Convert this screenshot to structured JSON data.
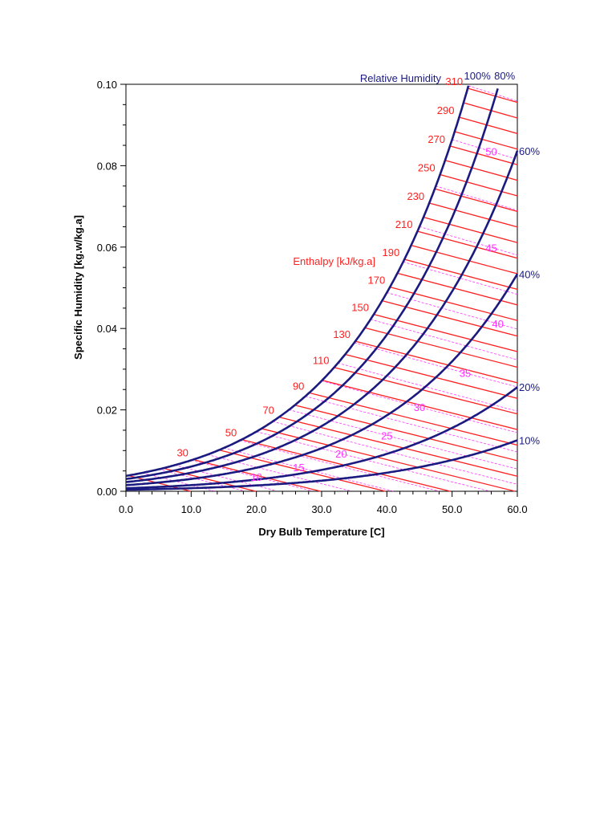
{
  "chart_data": {
    "type": "line",
    "title": "",
    "xlabel": "Dry Bulb Temperature [C]",
    "ylabel": "Specific Humidity [kg.w/kg.a]",
    "xlim": [
      0,
      60
    ],
    "ylim": [
      0,
      0.1
    ],
    "x_ticks": [
      "0.0",
      "10.0",
      "20.0",
      "30.0",
      "40.0",
      "50.0",
      "60.0"
    ],
    "y_ticks": [
      "0.00",
      "0.02",
      "0.04",
      "0.06",
      "0.08",
      "0.10"
    ],
    "grid": false,
    "relative_humidity": {
      "title": "Relative Humidity",
      "levels": [
        100,
        80,
        60,
        40,
        20,
        10
      ],
      "labels": [
        "100%",
        "80%",
        "60%",
        "40%",
        "20%",
        "10%"
      ],
      "color": "#1a1a80"
    },
    "enthalpy": {
      "title": "Enthalpy [kJ/kg.a]",
      "lines_from": 10,
      "lines_to": 310,
      "lines_step": 10,
      "labels": [
        "30",
        "50",
        "70",
        "90",
        "110",
        "130",
        "150",
        "170",
        "190",
        "210",
        "230",
        "250",
        "270",
        "290",
        "310"
      ],
      "color": "#ff2020"
    },
    "wet_bulb": {
      "labels": [
        "10",
        "15",
        "20",
        "25",
        "30",
        "35",
        "40",
        "45",
        "50"
      ],
      "color": "#ff33ff"
    },
    "pressure_kpa": 101.325
  }
}
